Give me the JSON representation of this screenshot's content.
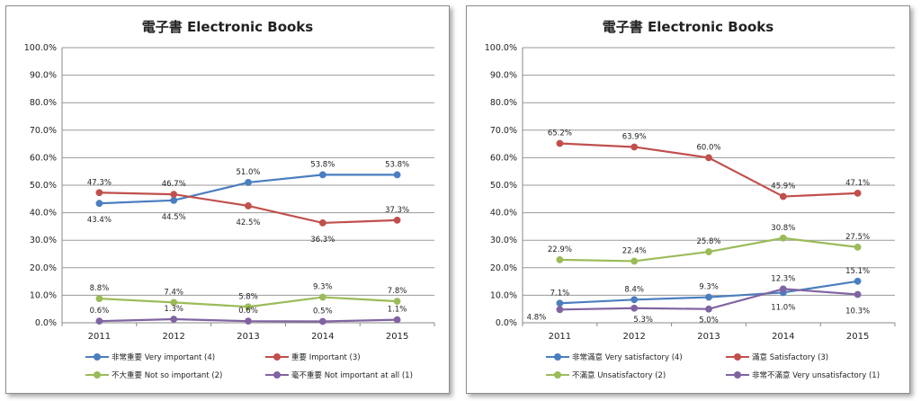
{
  "colors": {
    "blue": "#4a7ebf",
    "red": "#c0504d",
    "green": "#9bbb59",
    "purple": "#8064a2"
  },
  "chart_data": [
    {
      "type": "line",
      "title": "電子書  Electronic Books",
      "categories": [
        "2011",
        "2012",
        "2013",
        "2014",
        "2015"
      ],
      "ylim": [
        0,
        100
      ],
      "yticks": [
        "0.0%",
        "10.0%",
        "20.0%",
        "30.0%",
        "40.0%",
        "50.0%",
        "60.0%",
        "70.0%",
        "80.0%",
        "90.0%",
        "100.0%"
      ],
      "grid": true,
      "legend_position": "bottom",
      "series": [
        {
          "name": "非常重要 Very important (4)",
          "color": "#4a7ebf",
          "values": [
            43.4,
            44.5,
            51.0,
            53.8,
            53.8
          ],
          "labels": [
            "43.4%",
            "44.5%",
            "51.0%",
            "53.8%",
            "53.8%"
          ]
        },
        {
          "name": "重要 Important (3)",
          "color": "#c0504d",
          "values": [
            47.3,
            46.7,
            42.5,
            36.3,
            37.3
          ],
          "labels": [
            "47.3%",
            "46.7%",
            "42.5%",
            "36.3%",
            "37.3%"
          ]
        },
        {
          "name": "不大重要 Not so important (2)",
          "color": "#9bbb59",
          "values": [
            8.8,
            7.4,
            5.8,
            9.3,
            7.8
          ],
          "labels": [
            "8.8%",
            "7.4%",
            "5.8%",
            "9.3%",
            "7.8%"
          ]
        },
        {
          "name": "毫不重要 Not important at all (1)",
          "color": "#8064a2",
          "values": [
            0.6,
            1.3,
            0.6,
            0.5,
            1.1
          ],
          "labels": [
            "0.6%",
            "1.3%",
            "0.6%",
            "0.5%",
            "1.1%"
          ]
        }
      ]
    },
    {
      "type": "line",
      "title": "電子書  Electronic Books",
      "categories": [
        "2011",
        "2012",
        "2013",
        "2014",
        "2015"
      ],
      "ylim": [
        0,
        100
      ],
      "yticks": [
        "0.0%",
        "10.0%",
        "20.0%",
        "30.0%",
        "40.0%",
        "50.0%",
        "60.0%",
        "70.0%",
        "80.0%",
        "90.0%",
        "100.0%"
      ],
      "grid": true,
      "legend_position": "bottom",
      "series": [
        {
          "name": "非常滿意 Very satisfactory (4)",
          "color": "#4a7ebf",
          "values": [
            7.1,
            8.4,
            9.3,
            11.0,
            15.1
          ],
          "labels": [
            "7.1%",
            "8.4%",
            "9.3%",
            "11.0%",
            "15.1%"
          ]
        },
        {
          "name": "滿意 Satisfactory (3)",
          "color": "#c0504d",
          "values": [
            65.2,
            63.9,
            60.0,
            45.9,
            47.1
          ],
          "labels": [
            "65.2%",
            "63.9%",
            "60.0%",
            "45.9%",
            "47.1%"
          ]
        },
        {
          "name": "不滿意 Unsatisfactory (2)",
          "color": "#9bbb59",
          "values": [
            22.9,
            22.4,
            25.8,
            30.8,
            27.5
          ],
          "labels": [
            "22.9%",
            "22.4%",
            "25.8%",
            "30.8%",
            "27.5%"
          ]
        },
        {
          "name": "非常不滿意 Very unsatisfactory (1)",
          "color": "#8064a2",
          "values": [
            4.8,
            5.3,
            5.0,
            12.3,
            10.3
          ],
          "labels": [
            "4.8%",
            "5.3%",
            "5.0%",
            "12.3%",
            "10.3%"
          ]
        }
      ]
    }
  ]
}
